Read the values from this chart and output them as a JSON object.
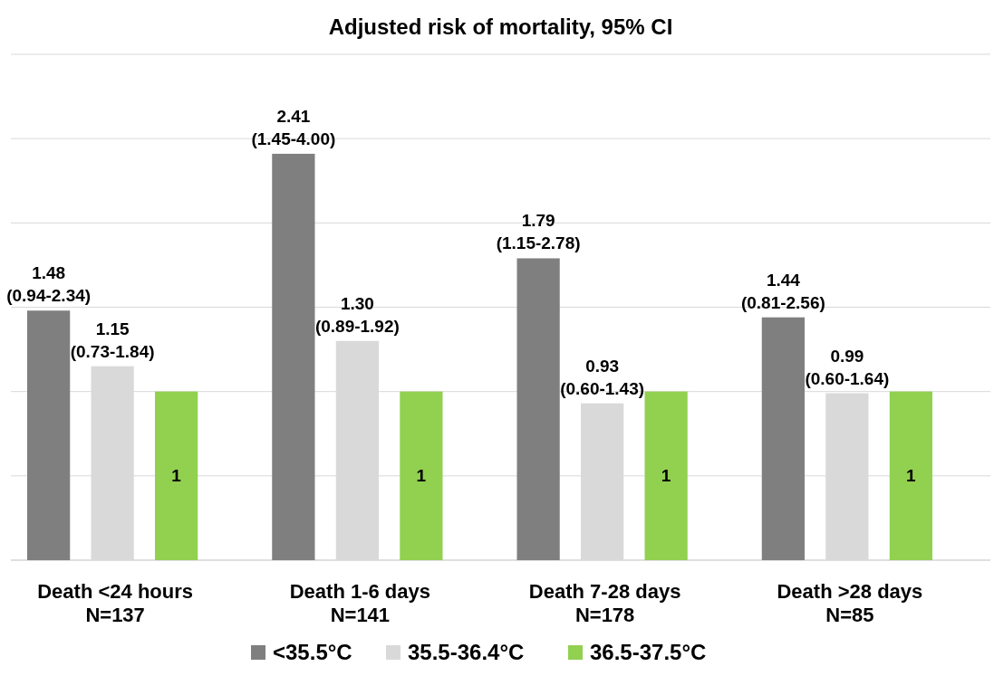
{
  "chart_data": {
    "type": "bar",
    "title": "Adjusted risk of mortality, 95% CI",
    "categories": [
      "Death <24 hours\nN=137",
      "Death 1-6 days\nN=141",
      "Death 7-28 days\nN=178",
      "Death >28 days\nN=85"
    ],
    "series": [
      {
        "name": "<35.5°C",
        "color": "#7f7f7f",
        "values": [
          1.48,
          2.41,
          1.79,
          1.44
        ],
        "value_labels": [
          "1.48\n(0.94-2.34)",
          "2.41\n(1.45-4.00)",
          "1.79\n(1.15-2.78)",
          "1.44\n(0.81-2.56)"
        ]
      },
      {
        "name": "35.5-36.4°C",
        "color": "#d9d9d9",
        "values": [
          1.15,
          1.3,
          0.93,
          0.99
        ],
        "value_labels": [
          "1.15\n(0.73-1.84)",
          "1.30\n(0.89-1.92)",
          "0.93\n(0.60-1.43)",
          "0.99\n(0.60-1.64)"
        ]
      },
      {
        "name": "36.5-37.5°C",
        "color": "#92d050",
        "values": [
          1,
          1,
          1,
          1
        ],
        "value_labels": [
          "1",
          "1",
          "1",
          "1"
        ]
      }
    ],
    "ylim": [
      0,
      3
    ],
    "yticks": [
      {
        "value": 0,
        "label": null
      },
      {
        "value": 0.5,
        "label": null
      },
      {
        "value": 1,
        "label": null
      },
      {
        "value": 1.5,
        "label": null
      },
      {
        "value": 2,
        "label": null
      },
      {
        "value": 2.5,
        "label": null
      },
      {
        "value": 3,
        "label": null
      }
    ],
    "tick_labels": "x",
    "grid": "y",
    "legend": "bottom"
  }
}
